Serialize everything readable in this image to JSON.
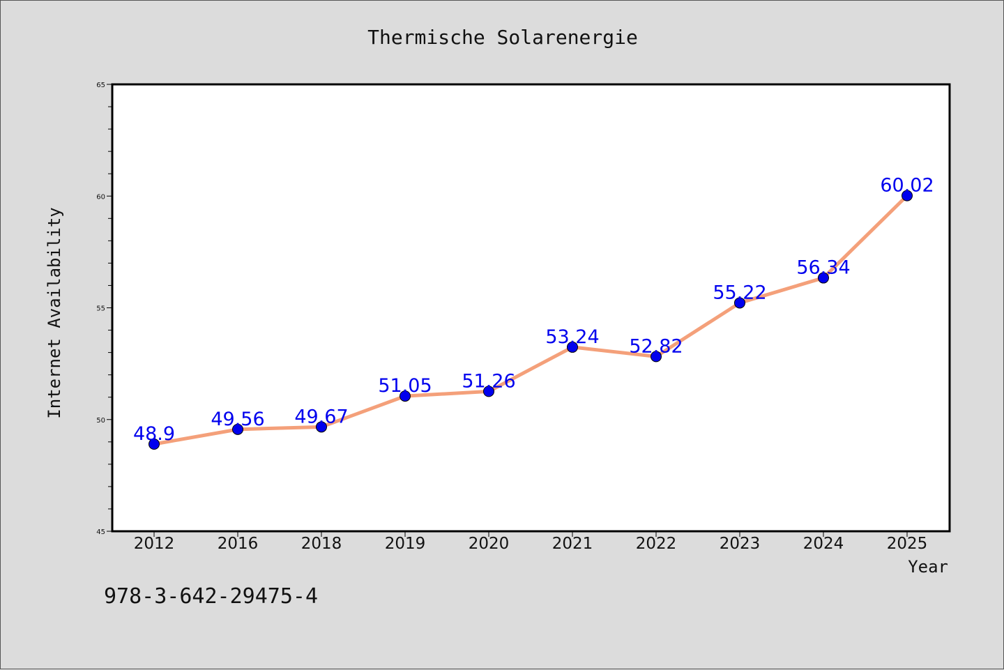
{
  "chart_data": {
    "type": "line",
    "title": "Thermische Solarenergie",
    "xlabel": "Year",
    "ylabel": "Internet Availability",
    "categories": [
      "2012",
      "2016",
      "2018",
      "2019",
      "2020",
      "2021",
      "2022",
      "2023",
      "2024",
      "2025"
    ],
    "series": [
      {
        "values": [
          48.9,
          49.56,
          49.67,
          51.05,
          51.26,
          53.24,
          52.82,
          55.22,
          56.34,
          60.02
        ],
        "labels": [
          "48.9",
          "49.56",
          "49.67",
          "51.05",
          "51.26",
          "53.24",
          "52.82",
          "55.22",
          "56.34",
          "60.02"
        ]
      }
    ],
    "ylim": [
      45,
      65
    ],
    "yticks": [
      45,
      50,
      55,
      60,
      65
    ],
    "grid": false,
    "colors": {
      "line": "#f4a07a",
      "marker": "#0000ee",
      "label": "#0000ee",
      "plot_background": "#ffffff",
      "page_background": "#dcdcdc"
    }
  },
  "footer_text": "978-3-642-29475-4"
}
